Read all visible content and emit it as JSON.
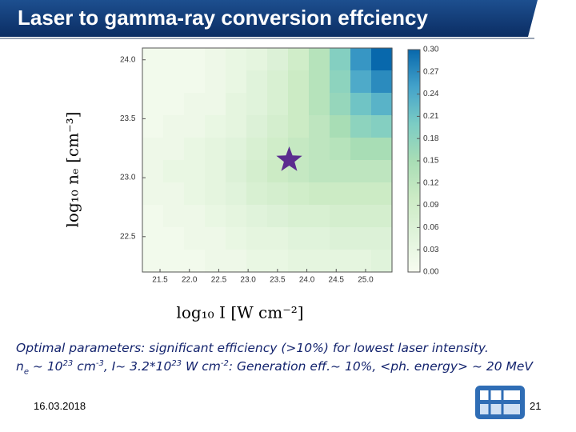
{
  "header": {
    "title": "Laser to gamma-ray conversion effciency"
  },
  "chart_data": {
    "type": "heatmap",
    "xlabel": "log₁₀ I [W cm⁻²]",
    "ylabel": "log₁₀ nₑ [cm⁻³]",
    "xlim": [
      21.2,
      25.45
    ],
    "ylim": [
      22.2,
      24.1
    ],
    "xticks": [
      21.5,
      {
        "value": 22,
        "label": "22.0"
      },
      22.5,
      {
        "value": 23,
        "label": "23.0"
      },
      23.5,
      {
        "value": 24,
        "label": "24.0"
      },
      24.5,
      {
        "value": 25,
        "label": "25.0"
      }
    ],
    "yticks": [
      22.5,
      {
        "value": 23,
        "label": "23.0"
      },
      23.5,
      {
        "value": 24,
        "label": "24.0"
      }
    ],
    "clim": [
      0,
      0.3
    ],
    "cticks": [
      {
        "value": 0,
        "label": "0.00"
      },
      0.03,
      0.06,
      0.09,
      0.12,
      0.15,
      0.18,
      0.21,
      0.24,
      0.27,
      {
        "value": 0.3,
        "label": "0.30"
      }
    ],
    "colorscale": [
      "#f7fcf0",
      "#e0f3db",
      "#ccebc5",
      "#a8ddb5",
      "#7bccc4",
      "#43a2ca",
      "#0868ac"
    ],
    "z": [
      [
        0.01,
        0.01,
        0.01,
        0.02,
        0.03,
        0.04,
        0.06,
        0.09,
        0.13,
        0.19,
        0.26,
        0.3
      ],
      [
        0.01,
        0.01,
        0.01,
        0.02,
        0.03,
        0.05,
        0.07,
        0.1,
        0.13,
        0.18,
        0.24,
        0.27
      ],
      [
        0.01,
        0.01,
        0.02,
        0.02,
        0.04,
        0.05,
        0.07,
        0.1,
        0.13,
        0.17,
        0.21,
        0.23
      ],
      [
        0.01,
        0.02,
        0.02,
        0.03,
        0.04,
        0.06,
        0.08,
        0.1,
        0.12,
        0.15,
        0.18,
        0.19
      ],
      [
        0.02,
        0.02,
        0.03,
        0.04,
        0.05,
        0.07,
        0.09,
        0.11,
        0.12,
        0.13,
        0.15,
        0.15
      ],
      [
        0.02,
        0.03,
        0.03,
        0.04,
        0.06,
        0.08,
        0.1,
        0.11,
        0.12,
        0.12,
        0.12,
        0.12
      ],
      [
        0.02,
        0.02,
        0.03,
        0.04,
        0.05,
        0.07,
        0.08,
        0.09,
        0.1,
        0.1,
        0.1,
        0.1
      ],
      [
        0.01,
        0.02,
        0.02,
        0.03,
        0.04,
        0.05,
        0.06,
        0.07,
        0.07,
        0.08,
        0.08,
        0.08
      ],
      [
        0.01,
        0.01,
        0.02,
        0.02,
        0.03,
        0.04,
        0.04,
        0.05,
        0.05,
        0.06,
        0.06,
        0.06
      ],
      [
        0.01,
        0.01,
        0.01,
        0.02,
        0.02,
        0.03,
        0.03,
        0.04,
        0.04,
        0.04,
        0.04,
        0.05
      ]
    ],
    "marker": {
      "x": 23.7,
      "y": 23.15
    },
    "marker_color": "#5b2c8f"
  },
  "notes": {
    "line1": "Optimal parameters: significant efficiency (>10%) for lowest laser intensity.",
    "line2": [
      "n",
      "e",
      " ~ 10",
      "23",
      " cm",
      "-3",
      ", I~ 3.2*10",
      "23",
      " W cm",
      "-2",
      ": Generation eff.~ 10%, <ph. energy> ~ 20 MeV"
    ]
  },
  "footer": {
    "date": "16.03.2018",
    "page": "21"
  }
}
